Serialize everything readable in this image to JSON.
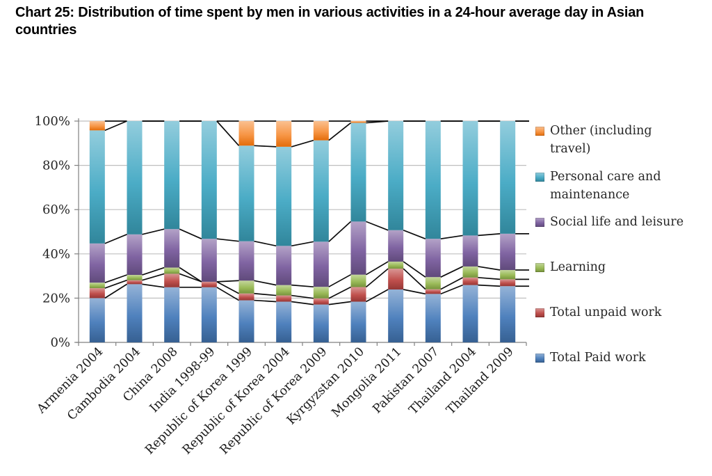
{
  "chart_data": {
    "type": "bar",
    "stacked_percent": true,
    "title": "Chart 25: Distribution of time spent by men in various activities in a 24-hour average day in Asian countries",
    "xlabel": "",
    "ylabel": "",
    "ylim": [
      0,
      100
    ],
    "ytick_labels": [
      "0%",
      "20%",
      "40%",
      "60%",
      "80%",
      "100%"
    ],
    "grid": "horizontal",
    "legend_position": "right",
    "series_connector_lines": true,
    "categories": [
      "Armenia 2004",
      "Cambodia 2004",
      "China 2008",
      "India 1998-99",
      "Republic of Korea 1999",
      "Republic of Korea 2004",
      "Republic of Korea 2009",
      "Kyrgyzstan 2010",
      "Mongolia 2011",
      "Pakistan 2007",
      "Thailand 2004",
      "Thailand 2009"
    ],
    "series": [
      {
        "name": "Total Paid work",
        "color": "#4F81BD",
        "color_light": "#95B3D7",
        "color_dark": "#366092",
        "values": [
          20.0,
          26.3,
          24.9,
          24.9,
          19.0,
          18.4,
          17.1,
          18.4,
          23.9,
          21.9,
          25.9,
          25.4
        ]
      },
      {
        "name": "Total unpaid work",
        "color": "#C0504D",
        "color_light": "#D99694",
        "color_dark": "#953735",
        "values": [
          4.5,
          1.8,
          6.1,
          2.5,
          3.1,
          2.8,
          2.8,
          6.6,
          9.4,
          2.1,
          3.4,
          3.1
        ]
      },
      {
        "name": "Learning",
        "color": "#9BBB59",
        "color_light": "#C3D69B",
        "color_dark": "#77933C",
        "values": [
          2.5,
          2.4,
          2.8,
          0.0,
          5.8,
          4.7,
          5.2,
          5.6,
          3.2,
          5.5,
          5.0,
          4.2
        ]
      },
      {
        "name": "Social life and leisure",
        "color": "#8064A2",
        "color_light": "#B3A2C7",
        "color_dark": "#604A7B",
        "values": [
          17.7,
          18.3,
          17.4,
          19.4,
          17.8,
          17.7,
          20.4,
          24.0,
          14.2,
          17.3,
          14.0,
          16.4
        ]
      },
      {
        "name": "Personal care and maintenance",
        "color": "#4BACC6",
        "color_light": "#93CDDD",
        "color_dark": "#31869B",
        "values": [
          51.1,
          51.2,
          48.8,
          53.2,
          43.2,
          44.8,
          45.8,
          44.6,
          49.3,
          53.2,
          51.7,
          50.9
        ]
      },
      {
        "name": "Other (including travel)",
        "color": "#F79646",
        "color_light": "#FAC090",
        "color_dark": "#E36C0A",
        "values": [
          4.2,
          0.0,
          0.0,
          0.0,
          11.1,
          11.6,
          8.7,
          0.8,
          0.0,
          0.0,
          0.0,
          0.0
        ]
      }
    ]
  }
}
